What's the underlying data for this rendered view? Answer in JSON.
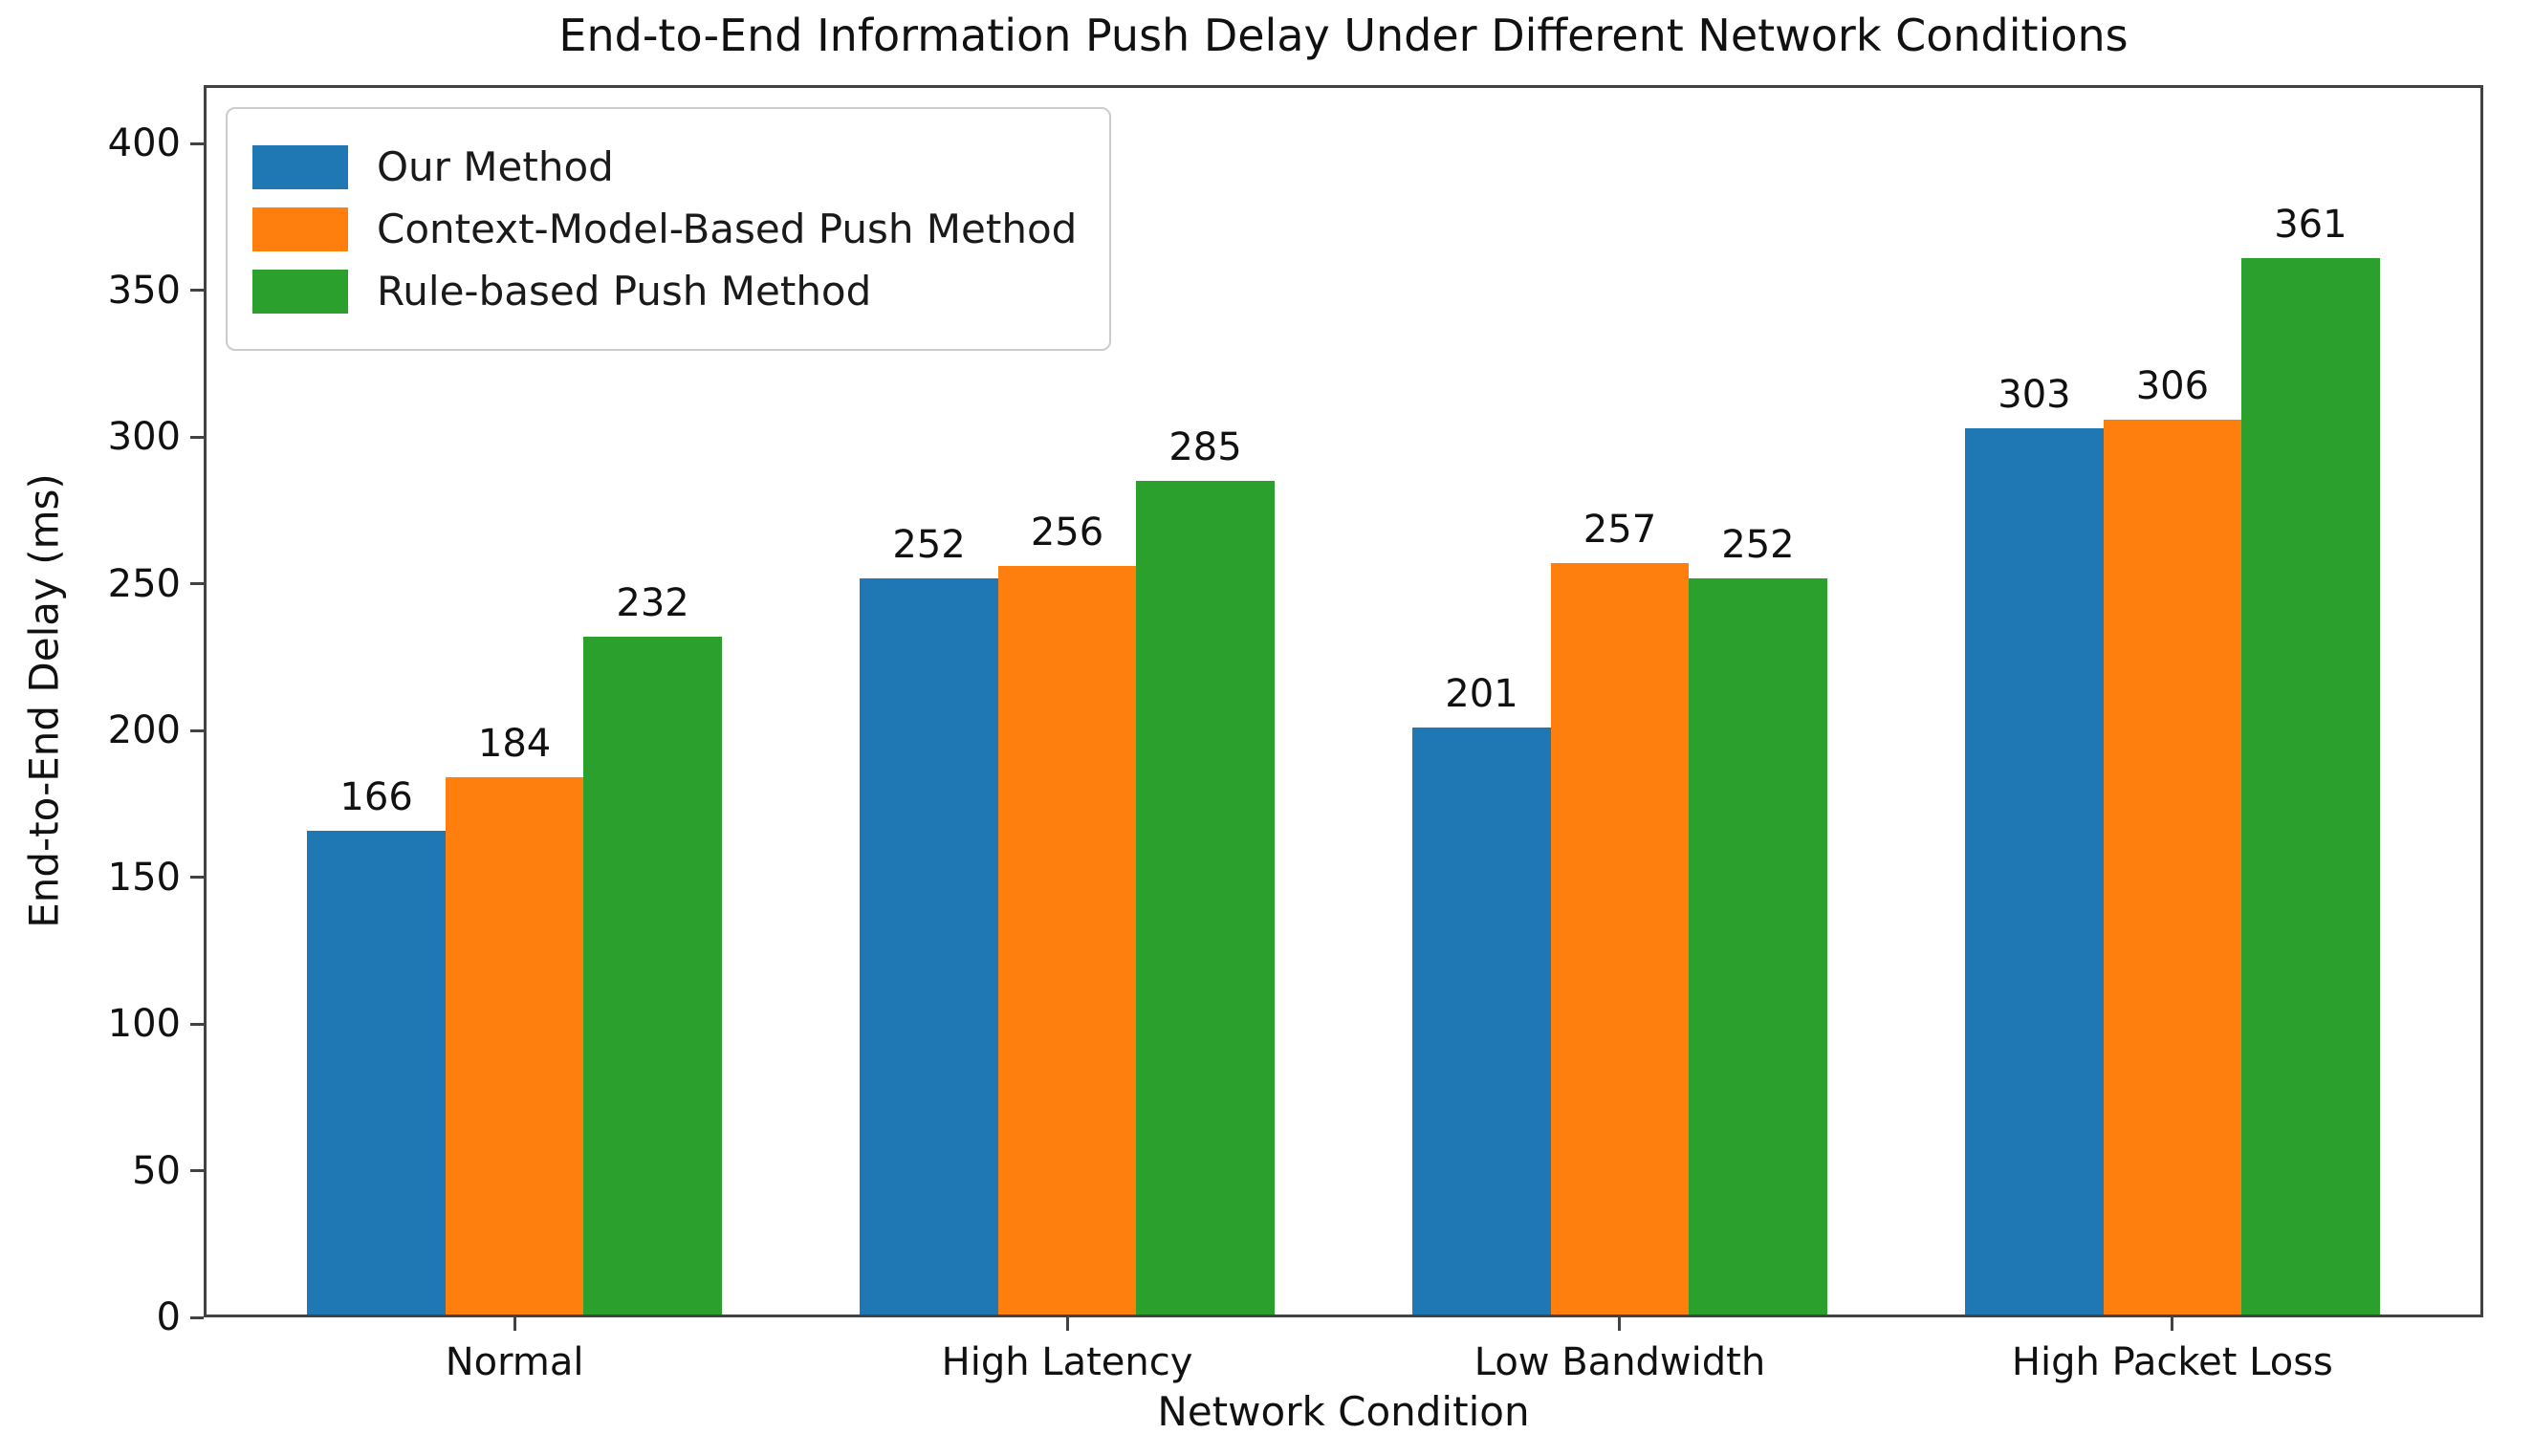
{
  "chart_data": {
    "type": "bar",
    "title": "End-to-End Information Push Delay Under Different Network Conditions",
    "xlabel": "Network Condition",
    "ylabel": "End-to-End Delay (ms)",
    "categories": [
      "Normal",
      "High Latency",
      "Low Bandwidth",
      "High Packet Loss"
    ],
    "series": [
      {
        "name": "Our Method",
        "color": "#1f77b4",
        "values": [
          166,
          252,
          201,
          303
        ]
      },
      {
        "name": "Context-Model-Based Push Method",
        "color": "#ff7f0e",
        "values": [
          184,
          256,
          257,
          306
        ]
      },
      {
        "name": "Rule-based Push Method",
        "color": "#2ca02c",
        "values": [
          232,
          285,
          252,
          361
        ]
      }
    ],
    "yticks": [
      0,
      50,
      100,
      150,
      200,
      250,
      300,
      350,
      400
    ],
    "ylim": [
      0,
      420
    ],
    "bar_value_labels": true,
    "grid": false,
    "legend_position": "upper-left",
    "background_color": "#ffffff",
    "spine_color": "#424242",
    "text_color": "#111111"
  }
}
